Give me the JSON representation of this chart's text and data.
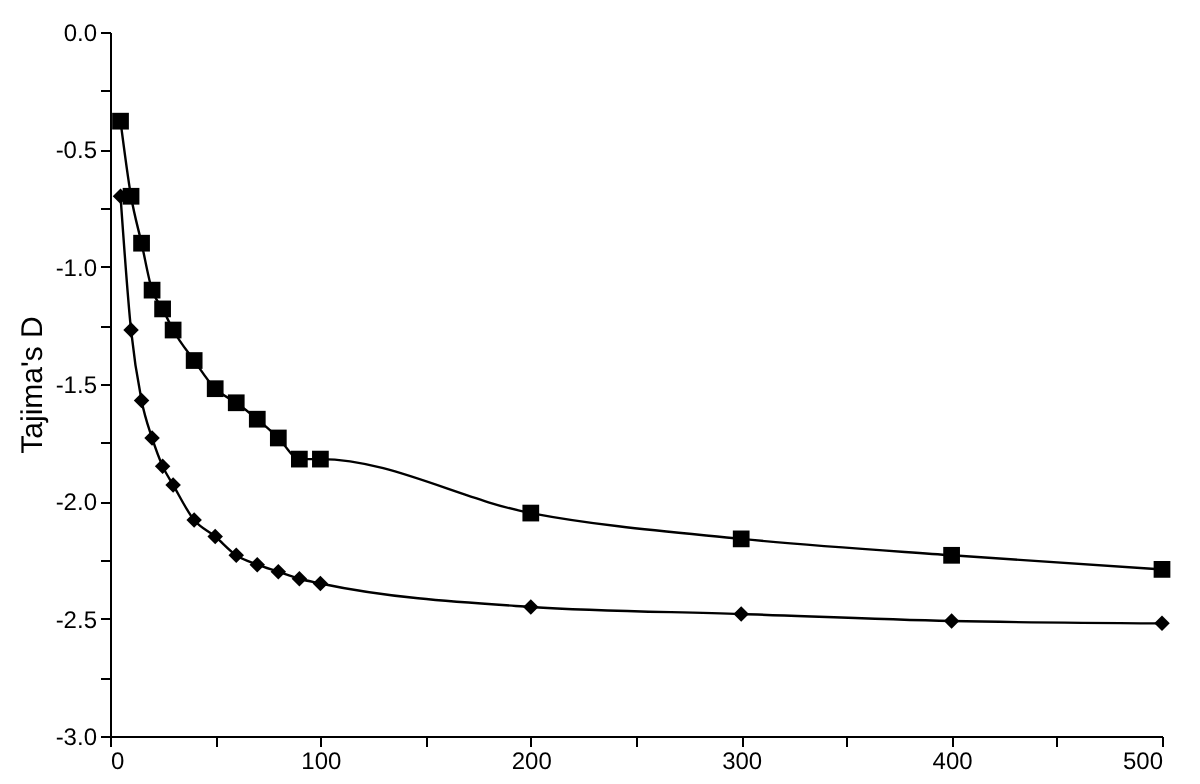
{
  "chart_data": {
    "type": "line",
    "ylabel": "Tajima's D",
    "xlim": [
      0,
      500
    ],
    "xticks": [
      0,
      {
        "value": 50,
        "label": null
      },
      100,
      {
        "value": 150,
        "label": null
      },
      200,
      {
        "value": 250,
        "label": null
      },
      300,
      {
        "value": 350,
        "label": null
      },
      400,
      {
        "value": 450,
        "label": null
      },
      500
    ],
    "ylim": [
      -3.0,
      0.0
    ],
    "yticks": [
      {
        "value": -3.0,
        "label": "-3.0"
      },
      {
        "value": -2.75,
        "label": null
      },
      -2.5,
      {
        "value": -2.25,
        "label": null
      },
      {
        "value": -2.0,
        "label": "-2.0"
      },
      {
        "value": -1.75,
        "label": null
      },
      -1.5,
      {
        "value": -1.25,
        "label": null
      },
      {
        "value": -1.0,
        "label": "-1.0"
      },
      {
        "value": -0.75,
        "label": null
      },
      -0.5,
      {
        "value": -0.25,
        "label": null
      },
      {
        "value": 0.0,
        "label": "0.0"
      }
    ],
    "x": [
      5,
      10,
      15,
      20,
      25,
      30,
      40,
      50,
      60,
      70,
      80,
      90,
      100,
      200,
      300,
      400,
      500
    ],
    "series": [
      {
        "color": "#000000",
        "marker": "square",
        "values": [
          -0.38,
          -0.7,
          -0.9,
          -1.1,
          -1.18,
          -1.27,
          -1.4,
          -1.52,
          -1.58,
          -1.65,
          -1.73,
          -1.82,
          -1.82,
          -2.05,
          -2.16,
          -2.23,
          -2.29
        ]
      },
      {
        "color": "#000000",
        "marker": "diamond",
        "values": [
          -0.7,
          -1.27,
          -1.57,
          -1.73,
          -1.85,
          -1.93,
          -2.08,
          -2.15,
          -2.23,
          -2.27,
          -2.3,
          -2.33,
          -2.35,
          -2.45,
          -2.48,
          -2.51,
          -2.52
        ]
      }
    ],
    "grid": false,
    "line_style": "solid"
  }
}
